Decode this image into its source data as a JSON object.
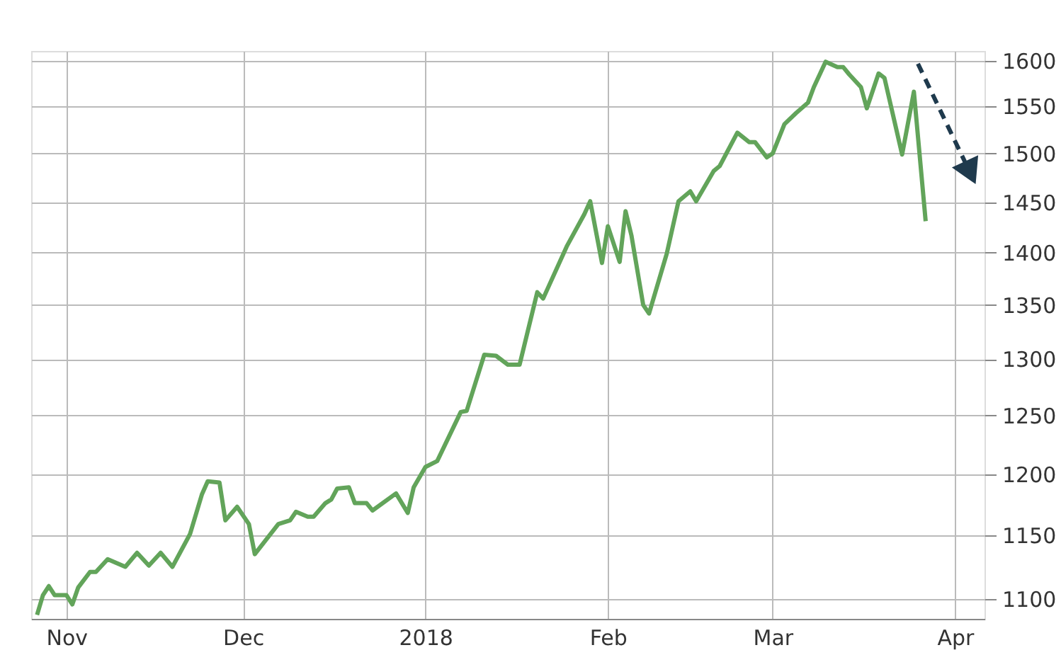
{
  "chart_data": {
    "type": "line",
    "x": [
      "2017-10-27",
      "2017-10-28",
      "2017-10-29",
      "2017-10-30",
      "2017-11-01",
      "2017-11-02",
      "2017-11-03",
      "2017-11-05",
      "2017-11-06",
      "2017-11-08",
      "2017-11-11",
      "2017-11-13",
      "2017-11-15",
      "2017-11-17",
      "2017-11-19",
      "2017-11-22",
      "2017-11-24",
      "2017-11-25",
      "2017-11-27",
      "2017-11-28",
      "2017-11-30",
      "2017-12-02",
      "2017-12-03",
      "2017-12-07",
      "2017-12-09",
      "2017-12-10",
      "2017-12-12",
      "2017-12-13",
      "2017-12-15",
      "2017-12-16",
      "2017-12-17",
      "2017-12-19",
      "2017-12-20",
      "2017-12-22",
      "2017-12-23",
      "2017-12-27",
      "2017-12-29",
      "2017-12-30",
      "2018-01-01",
      "2018-01-03",
      "2018-01-07",
      "2018-01-08",
      "2018-01-11",
      "2018-01-13",
      "2018-01-15",
      "2018-01-17",
      "2018-01-20",
      "2018-01-21",
      "2018-01-25",
      "2018-01-28",
      "2018-01-29",
      "2018-01-31",
      "2018-02-01",
      "2018-02-03",
      "2018-02-04",
      "2018-02-05",
      "2018-02-07",
      "2018-02-08",
      "2018-02-11",
      "2018-02-13",
      "2018-02-15",
      "2018-02-16",
      "2018-02-19",
      "2018-02-20",
      "2018-02-23",
      "2018-02-25",
      "2018-02-26",
      "2018-02-28",
      "2018-03-01",
      "2018-03-03",
      "2018-03-05",
      "2018-03-07",
      "2018-03-08",
      "2018-03-10",
      "2018-03-12",
      "2018-03-13",
      "2018-03-14",
      "2018-03-16",
      "2018-03-17",
      "2018-03-19",
      "2018-03-20",
      "2018-03-23",
      "2018-03-25",
      "2018-03-27"
    ],
    "series": [
      {
        "color": "#62a45a",
        "values": [
          1088,
          1103,
          1110,
          1103,
          1103,
          1096,
          1109,
          1121,
          1121,
          1131,
          1125,
          1136,
          1126,
          1136,
          1125,
          1151,
          1183,
          1194,
          1193,
          1162,
          1173,
          1159,
          1135,
          1159,
          1162,
          1169,
          1165,
          1165,
          1176,
          1179,
          1188,
          1189,
          1176,
          1176,
          1170,
          1184,
          1168,
          1189,
          1206,
          1211,
          1253,
          1254,
          1304,
          1303,
          1295,
          1295,
          1362,
          1356,
          1406,
          1438,
          1451,
          1390,
          1426,
          1391,
          1441,
          1417,
          1350,
          1342,
          1399,
          1451,
          1461,
          1451,
          1482,
          1487,
          1522,
          1512,
          1512,
          1496,
          1500,
          1531,
          1543,
          1554,
          1571,
          1599,
          1593,
          1593,
          1585,
          1571,
          1548,
          1586,
          1581,
          1499,
          1566,
          1431
        ]
      }
    ],
    "log": "y",
    "ylim": [
      1085,
      1611
    ],
    "yticks": [
      1100,
      1150,
      1200,
      1250,
      1300,
      1350,
      1400,
      1450,
      1500,
      1550,
      1600
    ],
    "xlim": [
      "2017-10-26",
      "2018-04-06"
    ],
    "xticks": [
      {
        "value": "2017-11-01",
        "label": "Nov"
      },
      {
        "value": "2017-12-01",
        "label": "Dec"
      },
      {
        "value": "2018-01-01",
        "label": "2018"
      },
      {
        "value": "2018-02-01",
        "label": "Feb"
      },
      {
        "value": "2018-03-01",
        "label": "Mar"
      },
      {
        "value": "2018-04-01",
        "label": "Apr"
      }
    ],
    "grid": true,
    "marker": "none",
    "line_style": "solid"
  }
}
